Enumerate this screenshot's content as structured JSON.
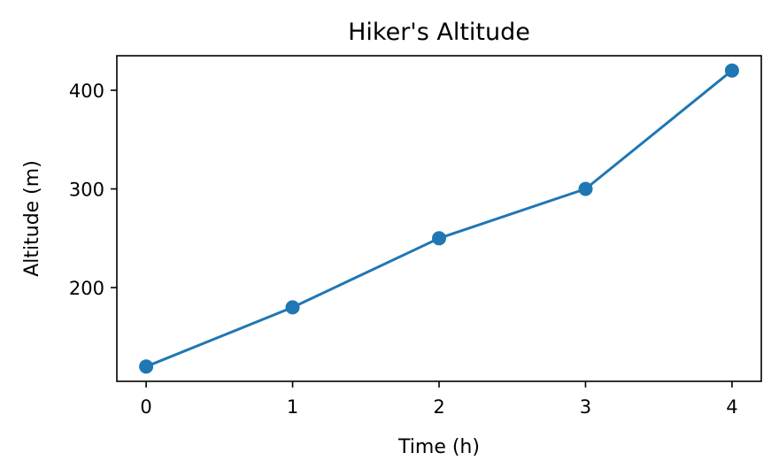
{
  "chart_data": {
    "type": "line",
    "title": "Hiker's Altitude",
    "xlabel": "Time (h)",
    "ylabel": "Altitude (m)",
    "x": [
      0,
      1,
      2,
      3,
      4
    ],
    "y": [
      120,
      180,
      250,
      300,
      420
    ],
    "xticks": [
      "0",
      "1",
      "2",
      "3",
      "4"
    ],
    "yticks": [
      200,
      300,
      400
    ],
    "xlim": [
      -0.2,
      4.2
    ],
    "ylim": [
      105,
      435
    ],
    "grid": false,
    "marker": "circle",
    "color": "#1f77b4"
  }
}
